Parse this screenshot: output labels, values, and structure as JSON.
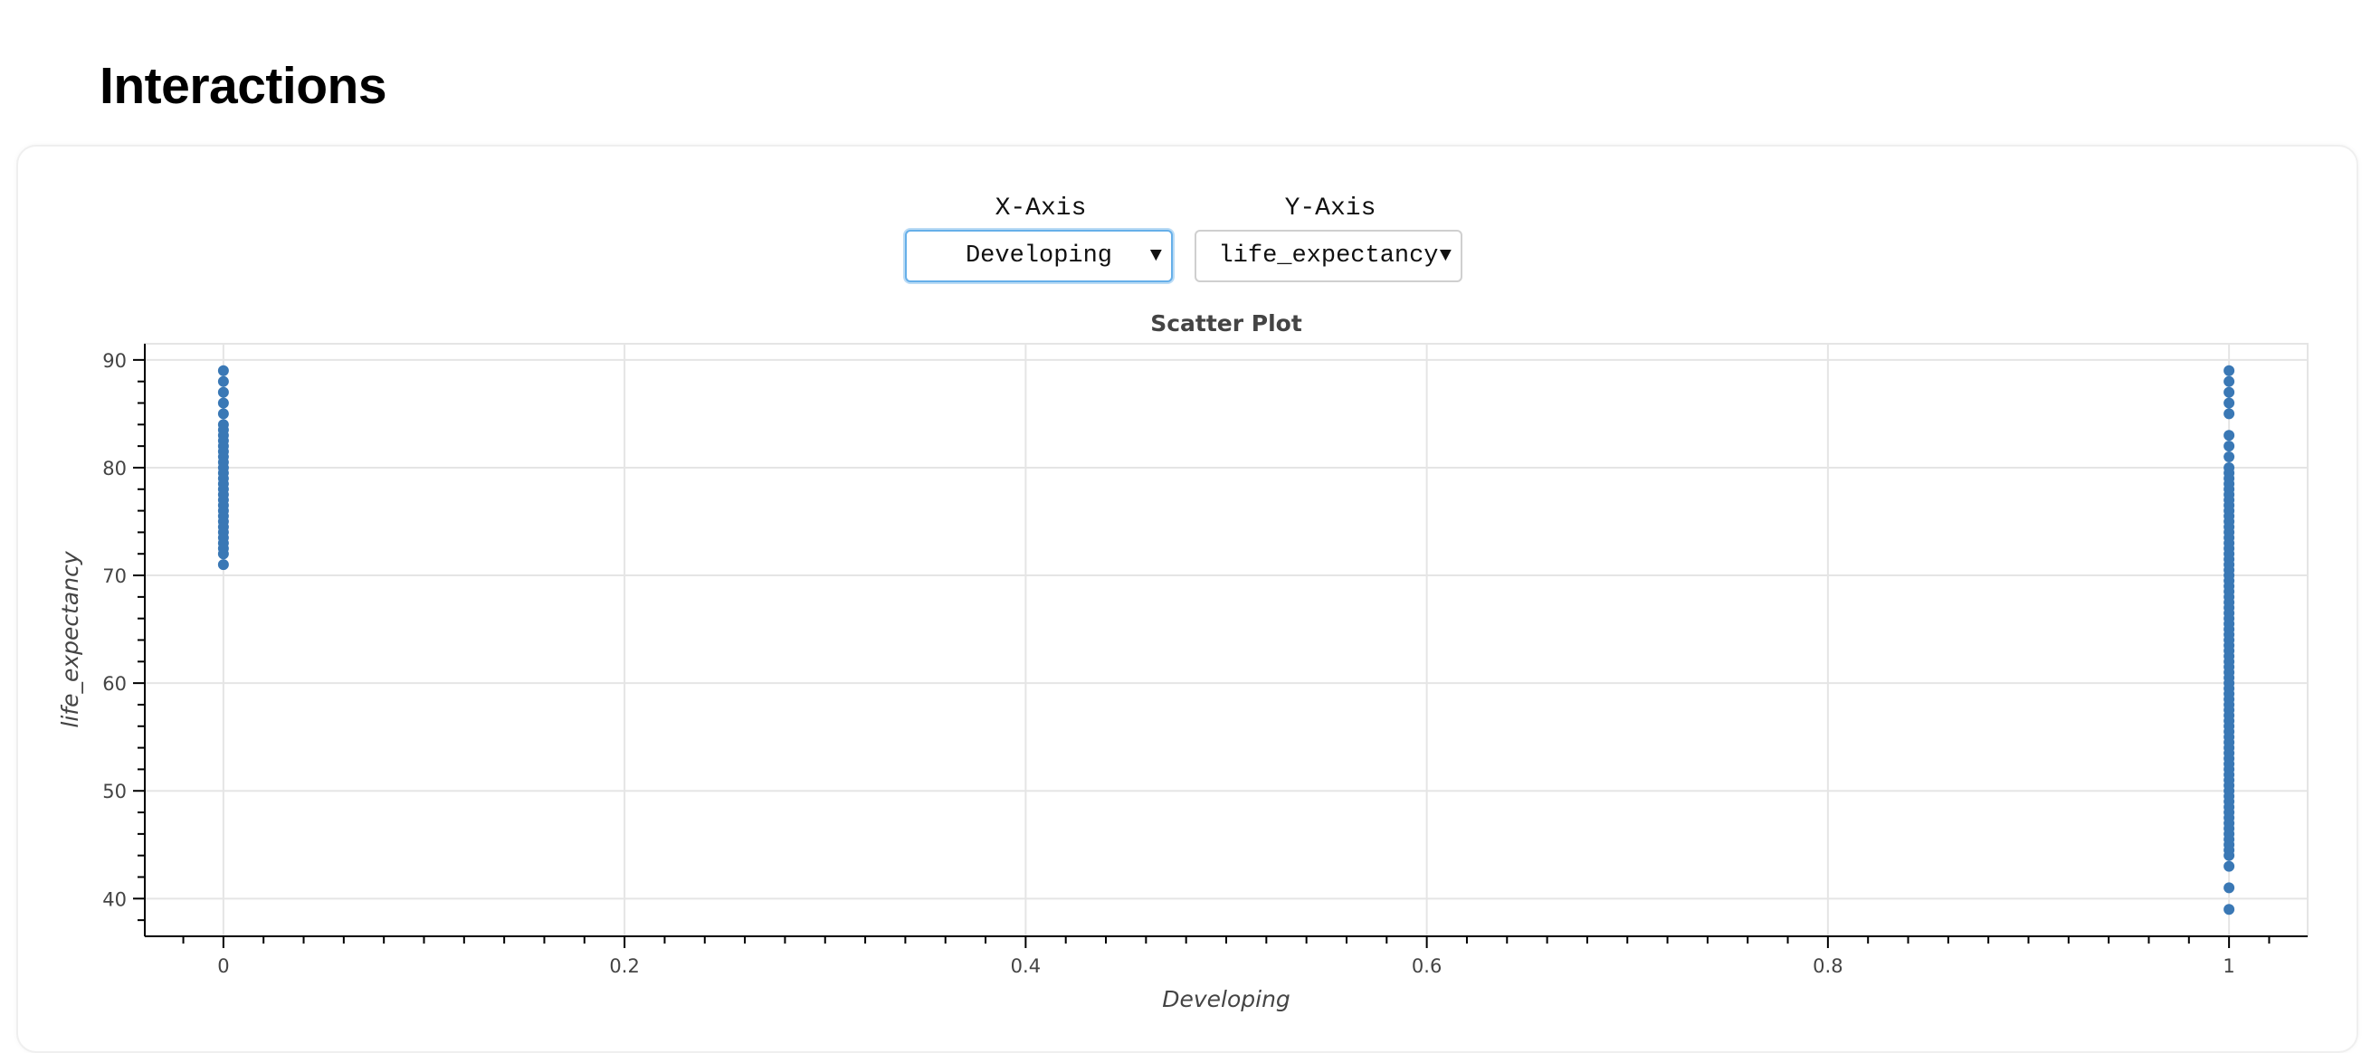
{
  "page": {
    "heading": "Interactions"
  },
  "controls": {
    "x_axis": {
      "label": "X-Axis",
      "selected": "Developing"
    },
    "y_axis": {
      "label": "Y-Axis",
      "selected": "life_expectancy"
    }
  },
  "colors": {
    "point": "#3a78b5",
    "grid": "#e5e5e5",
    "axis": "#000000",
    "title": "#444444"
  },
  "chart_data": {
    "type": "scatter",
    "title": "Scatter Plot",
    "xlabel": "Developing",
    "ylabel": "life_expectancy",
    "xlim": [
      -0.0392,
      1.0392
    ],
    "ylim": [
      36.5,
      91.5
    ],
    "grid": true,
    "legend": "none",
    "x_ticks": [
      0,
      0.2,
      0.4,
      0.6,
      0.8,
      1
    ],
    "x_tick_labels": [
      "0",
      "0.2",
      "0.4",
      "0.6",
      "0.8",
      "1"
    ],
    "y_ticks": [
      40,
      50,
      60,
      70,
      80,
      90
    ],
    "y_tick_labels": [
      "40",
      "50",
      "60",
      "70",
      "80",
      "90"
    ],
    "series": [
      {
        "points": [
          [
            0,
            89
          ],
          [
            0,
            88
          ],
          [
            0,
            87
          ],
          [
            0,
            86
          ],
          [
            0,
            85
          ],
          [
            0,
            84
          ],
          [
            0,
            83.5
          ],
          [
            0,
            83
          ],
          [
            0,
            82.5
          ],
          [
            0,
            82
          ],
          [
            0,
            81.5
          ],
          [
            0,
            81
          ],
          [
            0,
            80.5
          ],
          [
            0,
            80
          ],
          [
            0,
            79.5
          ],
          [
            0,
            79
          ],
          [
            0,
            78.5
          ],
          [
            0,
            78
          ],
          [
            0,
            77.5
          ],
          [
            0,
            77
          ],
          [
            0,
            76.5
          ],
          [
            0,
            76
          ],
          [
            0,
            75.5
          ],
          [
            0,
            75
          ],
          [
            0,
            74.5
          ],
          [
            0,
            74
          ],
          [
            0,
            73.5
          ],
          [
            0,
            73
          ],
          [
            0,
            72.5
          ],
          [
            0,
            72
          ],
          [
            0,
            71
          ],
          [
            1,
            89
          ],
          [
            1,
            88
          ],
          [
            1,
            87
          ],
          [
            1,
            86
          ],
          [
            1,
            85
          ],
          [
            1,
            83
          ],
          [
            1,
            82
          ],
          [
            1,
            81
          ],
          [
            1,
            80
          ],
          [
            1,
            79.5
          ],
          [
            1,
            79
          ],
          [
            1,
            78.5
          ],
          [
            1,
            78
          ],
          [
            1,
            77.5
          ],
          [
            1,
            77
          ],
          [
            1,
            76.5
          ],
          [
            1,
            76
          ],
          [
            1,
            75.5
          ],
          [
            1,
            75
          ],
          [
            1,
            74.5
          ],
          [
            1,
            74
          ],
          [
            1,
            73.5
          ],
          [
            1,
            73
          ],
          [
            1,
            72.5
          ],
          [
            1,
            72
          ],
          [
            1,
            71.5
          ],
          [
            1,
            71
          ],
          [
            1,
            70.5
          ],
          [
            1,
            70
          ],
          [
            1,
            69.5
          ],
          [
            1,
            69
          ],
          [
            1,
            68.5
          ],
          [
            1,
            68
          ],
          [
            1,
            67.5
          ],
          [
            1,
            67
          ],
          [
            1,
            66.5
          ],
          [
            1,
            66
          ],
          [
            1,
            65.5
          ],
          [
            1,
            65
          ],
          [
            1,
            64.5
          ],
          [
            1,
            64
          ],
          [
            1,
            63.5
          ],
          [
            1,
            63
          ],
          [
            1,
            62.5
          ],
          [
            1,
            62
          ],
          [
            1,
            61.5
          ],
          [
            1,
            61
          ],
          [
            1,
            60.5
          ],
          [
            1,
            60
          ],
          [
            1,
            59.5
          ],
          [
            1,
            59
          ],
          [
            1,
            58.5
          ],
          [
            1,
            58
          ],
          [
            1,
            57.5
          ],
          [
            1,
            57
          ],
          [
            1,
            56.5
          ],
          [
            1,
            56
          ],
          [
            1,
            55.5
          ],
          [
            1,
            55
          ],
          [
            1,
            54.5
          ],
          [
            1,
            54
          ],
          [
            1,
            53.5
          ],
          [
            1,
            53
          ],
          [
            1,
            52.5
          ],
          [
            1,
            52
          ],
          [
            1,
            51.5
          ],
          [
            1,
            51
          ],
          [
            1,
            50.5
          ],
          [
            1,
            50
          ],
          [
            1,
            49.5
          ],
          [
            1,
            49
          ],
          [
            1,
            48.5
          ],
          [
            1,
            48
          ],
          [
            1,
            47.5
          ],
          [
            1,
            47
          ],
          [
            1,
            46.5
          ],
          [
            1,
            46
          ],
          [
            1,
            45.5
          ],
          [
            1,
            45
          ],
          [
            1,
            44.5
          ],
          [
            1,
            44
          ],
          [
            1,
            43
          ],
          [
            1,
            41
          ],
          [
            1,
            39
          ]
        ]
      }
    ]
  }
}
